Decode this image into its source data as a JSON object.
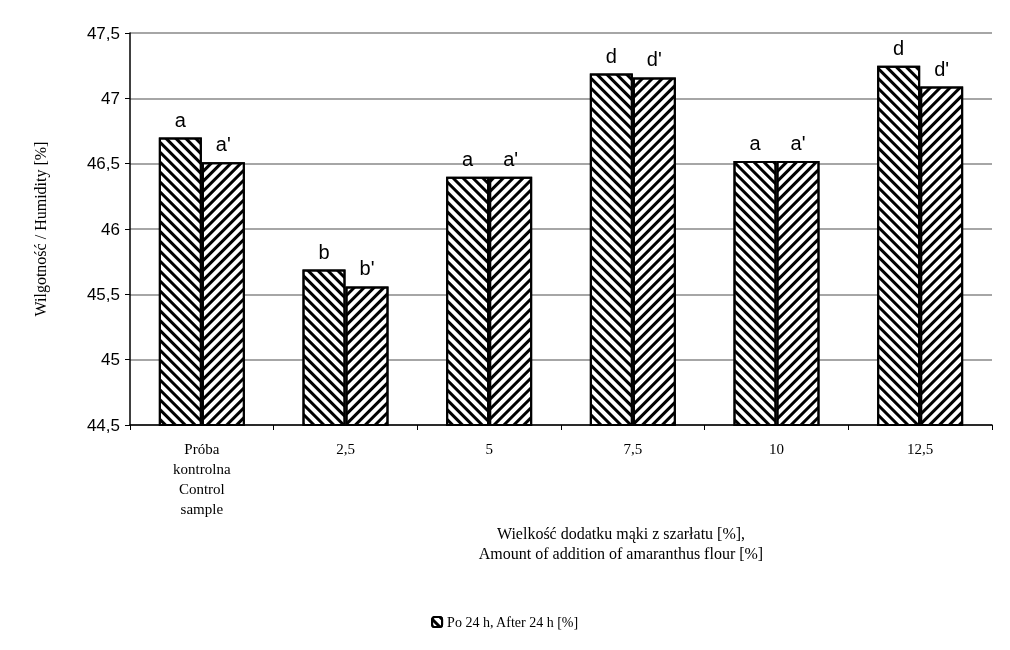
{
  "chart_data": {
    "type": "bar",
    "ylabel": "Wilgotność / Humidity [%]",
    "xlabel": "Wielkość dodatku mąki z szarłatu [%],\nAmount of addition of amaranthus flour [%]",
    "categories": [
      "Próba\nkontrolna\nControl\nsample",
      "2,5",
      "5",
      "7,5",
      "10",
      "12,5"
    ],
    "series": [
      {
        "name": "Po 24 h, After 24 h [%]",
        "color": "#000000",
        "values": [
          46.7,
          45.69,
          46.4,
          47.19,
          46.52,
          47.25
        ]
      },
      {
        "color": "#000000",
        "values": [
          46.51,
          45.56,
          46.4,
          47.16,
          46.52,
          47.09
        ]
      }
    ],
    "ylim": [
      44.5,
      47.5
    ],
    "yticks": [
      {
        "value": 44.5,
        "label": "44,5"
      },
      45,
      {
        "value": 45.5,
        "label": "45,5"
      },
      46,
      {
        "value": 46.5,
        "label": "46,5"
      },
      47,
      {
        "value": 47.5,
        "label": "47,5"
      }
    ],
    "grid": "y",
    "legend": "bottom",
    "annotations": [
      {
        "text": "a",
        "x": "Próba\nkontrolna\nControl\nsample",
        "y": 46.7
      },
      {
        "text": "a'",
        "x": "Próba\nkontrolna\nControl\nsample",
        "y": 46.51
      },
      {
        "text": "b",
        "x": "2,5",
        "y": 45.69
      },
      {
        "text": "b'",
        "x": "2,5",
        "y": 45.56
      },
      {
        "text": "a",
        "x": "5",
        "y": 46.4
      },
      {
        "text": "a'",
        "x": "5",
        "y": 46.4
      },
      {
        "text": "d",
        "x": "7,5",
        "y": 47.19
      },
      {
        "text": "d'",
        "x": "7,5",
        "y": 47.16
      },
      {
        "text": "a",
        "x": "10",
        "y": 46.52
      },
      {
        "text": "a'",
        "x": "10",
        "y": 46.52
      },
      {
        "text": "d",
        "x": "12,5",
        "y": 47.25
      },
      {
        "text": "d'",
        "x": "12,5",
        "y": 47.09
      }
    ]
  }
}
